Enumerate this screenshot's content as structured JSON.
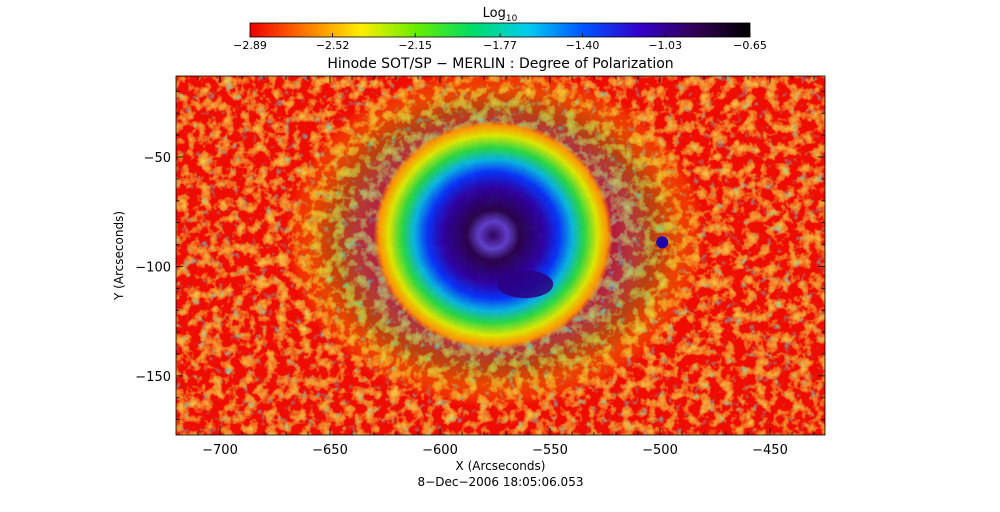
{
  "chart_data": {
    "type": "heatmap",
    "title": "Hinode SOT/SP − MERLIN : Degree of Polarization",
    "xlabel": "X (Arcseconds)",
    "ylabel": "Y (Arcseconds)",
    "footer": "8−Dec−2006 18:05:06.053",
    "xlim": [
      -720,
      -425
    ],
    "ylim": [
      -177,
      -13
    ],
    "x_ticks": [
      -700,
      -650,
      -600,
      -550,
      -500,
      -450
    ],
    "x_tick_labels": [
      "−700",
      "−650",
      "−600",
      "−550",
      "−500",
      "−450"
    ],
    "y_ticks": [
      -50,
      -100,
      -150
    ],
    "y_tick_labels": [
      "−50",
      "−100",
      "−150"
    ],
    "colorbar": {
      "title_base": "Log",
      "title_sub": "10",
      "range": [
        -2.89,
        -0.65
      ],
      "ticks": [
        -2.89,
        -2.52,
        -2.15,
        -1.77,
        -1.4,
        -1.03,
        -0.65
      ],
      "tick_labels": [
        "−2.89",
        "−2.52",
        "−2.15",
        "−1.77",
        "−1.40",
        "−1.03",
        "−0.65"
      ],
      "colors": [
        "#ee0000",
        "#ff7700",
        "#ffee00",
        "#66ee00",
        "#00dd66",
        "#00ccee",
        "#0055ff",
        "#3300cc",
        "#330055",
        "#000000"
      ]
    },
    "features": {
      "sunspot_center": [
        -574,
        -83
      ],
      "umbra_value": -0.9,
      "penumbra_value": -1.2,
      "background_value": -2.7
    }
  }
}
